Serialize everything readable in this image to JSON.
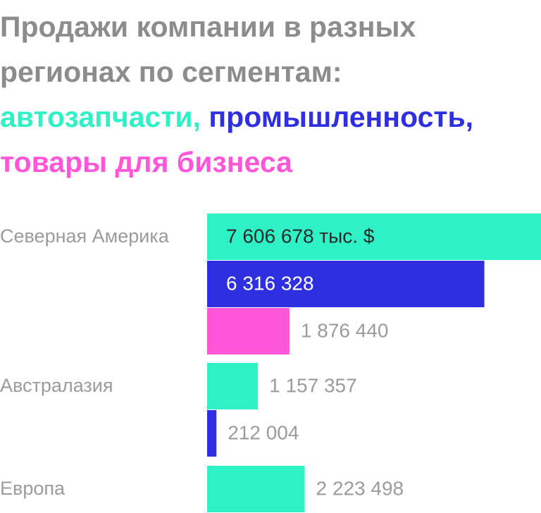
{
  "title": {
    "line1": "Продажи компании в разных",
    "line2": "регионах по сегментам:",
    "seg1": "автозапчасти,",
    "seg2": "промышленность,",
    "seg3": "товары для бизнеса"
  },
  "colors": {
    "title": "#8c8c8c",
    "auto_parts": "#2ef2c6",
    "industrial": "#2d2fe0",
    "business_products": "#ff55d8",
    "label": "#9b9b9b"
  },
  "chart_data": {
    "type": "bar",
    "orientation": "horizontal",
    "unit": "тыс. $",
    "xlim": [
      0,
      7606678
    ],
    "grid": false,
    "legend": "none",
    "series_names": [
      "автозапчасти",
      "промышленность",
      "товары для бизнеса"
    ],
    "groups": [
      {
        "category": "Северная Америка",
        "bars": [
          {
            "series": "автозапчасти",
            "value": 7606678,
            "label": "7 606 678 тыс. $"
          },
          {
            "series": "промышленность",
            "value": 6316328,
            "label": "6 316 328"
          },
          {
            "series": "товары для бизнеса",
            "value": 1876440,
            "label": "1 876 440"
          }
        ]
      },
      {
        "category": "Австралазия",
        "bars": [
          {
            "series": "автозапчасти",
            "value": 1157357,
            "label": "1 157 357"
          },
          {
            "series": "промышленность",
            "value": 212004,
            "label": "212 004"
          }
        ]
      },
      {
        "category": "Европа",
        "bars": [
          {
            "series": "автозапчасти",
            "value": 2223498,
            "label": "2 223 498"
          }
        ]
      }
    ]
  }
}
